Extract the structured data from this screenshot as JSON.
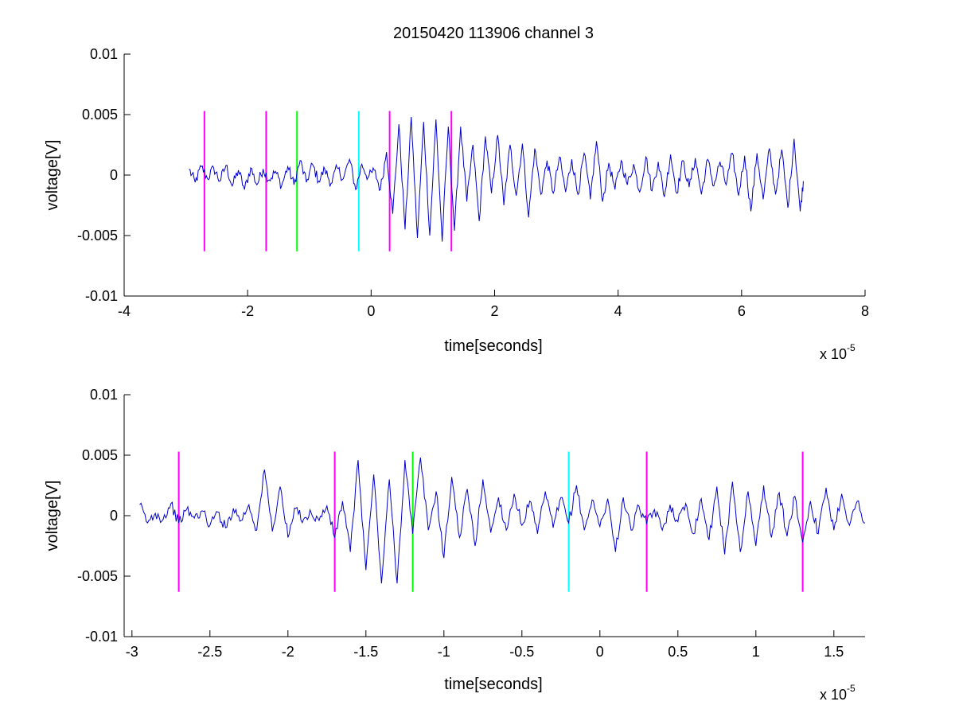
{
  "chart_data": [
    {
      "type": "line",
      "title": "20150420 113906 channel 3",
      "xlabel": "time[seconds]",
      "ylabel": "voltage[V]",
      "x_exponent_base": "x 10",
      "x_exponent_power": "-5",
      "xlim": [
        -4,
        8
      ],
      "ylim": [
        -0.01,
        0.01
      ],
      "x_ticks": [
        -4,
        -2,
        0,
        2,
        4,
        6,
        8
      ],
      "x_tick_labels": [
        "-4",
        "-2",
        "0",
        "2",
        "4",
        "6",
        "8"
      ],
      "y_ticks": [
        -0.01,
        -0.005,
        0,
        0.005,
        0.01
      ],
      "y_tick_labels": [
        "-0.01",
        "-0.005",
        "0",
        "0.005",
        "0.01"
      ],
      "signal": {
        "color": "#0000cc",
        "x_range": [
          -2.95,
          7.0
        ],
        "x": [
          -2.95,
          -2.85,
          -2.75,
          -2.65,
          -2.55,
          -2.45,
          -2.35,
          -2.25,
          -2.15,
          -2.05,
          -1.95,
          -1.85,
          -1.75,
          -1.65,
          -1.55,
          -1.45,
          -1.35,
          -1.25,
          -1.15,
          -1.05,
          -0.95,
          -0.85,
          -0.75,
          -0.65,
          -0.55,
          -0.45,
          -0.35,
          -0.25,
          -0.15,
          -0.05,
          0.05,
          0.15,
          0.25,
          0.35,
          0.45,
          0.55,
          0.65,
          0.75,
          0.85,
          0.95,
          1.05,
          1.15,
          1.25,
          1.35,
          1.45,
          1.55,
          1.65,
          1.75,
          1.85,
          1.95,
          2.05,
          2.15,
          2.25,
          2.35,
          2.45,
          2.55,
          2.65,
          2.75,
          2.85,
          2.95,
          3.05,
          3.15,
          3.25,
          3.35,
          3.45,
          3.55,
          3.65,
          3.75,
          3.85,
          3.95,
          4.05,
          4.15,
          4.25,
          4.35,
          4.45,
          4.55,
          4.65,
          4.75,
          4.85,
          4.95,
          5.05,
          5.15,
          5.25,
          5.35,
          5.45,
          5.55,
          5.65,
          5.75,
          5.85,
          5.95,
          6.05,
          6.15,
          6.25,
          6.35,
          6.45,
          6.55,
          6.65,
          6.75,
          6.85,
          6.95,
          7.0
        ],
        "y": [
          0.0005,
          -0.0006,
          0.0007,
          -0.0003,
          0.0006,
          -0.0005,
          0.0008,
          -0.0009,
          0.0004,
          -0.0012,
          0.0006,
          -0.0008,
          0.0005,
          -0.0004,
          0.0003,
          -0.0009,
          0.0007,
          -0.0008,
          0.0012,
          -0.0006,
          0.0009,
          -0.0005,
          0.0005,
          -0.0007,
          0.0006,
          -0.0003,
          0.0013,
          -0.0012,
          0.0009,
          -0.0002,
          0.0004,
          -0.0012,
          0.0019,
          -0.0032,
          0.0042,
          -0.0045,
          0.0048,
          -0.0052,
          0.0044,
          -0.005,
          0.0046,
          -0.0055,
          0.004,
          -0.0046,
          0.004,
          -0.0022,
          0.0025,
          -0.0038,
          0.0032,
          -0.0015,
          0.0033,
          -0.0025,
          0.0025,
          -0.0017,
          0.0026,
          -0.0035,
          0.0022,
          -0.0016,
          0.0012,
          -0.0015,
          0.0015,
          -0.0014,
          0.0013,
          -0.0016,
          0.0018,
          -0.002,
          0.0028,
          -0.0022,
          0.001,
          -0.0012,
          0.0012,
          -0.0008,
          0.0009,
          -0.0014,
          0.0015,
          -0.0013,
          0.0011,
          -0.0018,
          0.0017,
          -0.0015,
          0.0012,
          -0.001,
          0.0014,
          -0.0016,
          0.0013,
          -0.0009,
          0.0011,
          -0.0008,
          0.0018,
          -0.0017,
          0.0016,
          -0.003,
          0.0018,
          -0.002,
          0.0022,
          -0.0016,
          0.0021,
          -0.0027,
          0.003,
          -0.003,
          -0.0005
        ]
      },
      "markers": [
        {
          "x": -2.7,
          "color": "#ff00ff"
        },
        {
          "x": -1.7,
          "color": "#ff00ff"
        },
        {
          "x": -1.2,
          "color": "#00ff00"
        },
        {
          "x": -0.2,
          "color": "#00ffff"
        },
        {
          "x": 0.3,
          "color": "#ff00ff"
        },
        {
          "x": 1.3,
          "color": "#ff00ff"
        }
      ],
      "marker_ylim": [
        -0.0063,
        0.0053
      ]
    },
    {
      "type": "line",
      "title": "",
      "xlabel": "time[seconds]",
      "ylabel": "voltage[V]",
      "x_exponent_base": "x 10",
      "x_exponent_power": "-5",
      "xlim": [
        -3.05,
        1.7
      ],
      "ylim": [
        -0.01,
        0.01
      ],
      "x_ticks": [
        -3,
        -2.5,
        -2,
        -1.5,
        -1,
        -0.5,
        0,
        0.5,
        1,
        1.5
      ],
      "x_tick_labels": [
        "-3",
        "-2.5",
        "-2",
        "-1.5",
        "-1",
        "-0.5",
        "0",
        "0.5",
        "1",
        "1.5"
      ],
      "y_ticks": [
        -0.01,
        -0.005,
        0,
        0.005,
        0.01
      ],
      "y_tick_labels": [
        "-0.01",
        "-0.005",
        "0",
        "0.005",
        "0.01"
      ],
      "signal": {
        "color": "#0000cc",
        "x_range": [
          -2.95,
          1.7
        ],
        "x": [
          -2.95,
          -2.9,
          -2.85,
          -2.8,
          -2.75,
          -2.7,
          -2.65,
          -2.6,
          -2.55,
          -2.5,
          -2.45,
          -2.4,
          -2.35,
          -2.3,
          -2.25,
          -2.2,
          -2.15,
          -2.1,
          -2.05,
          -2.0,
          -1.95,
          -1.9,
          -1.85,
          -1.8,
          -1.75,
          -1.7,
          -1.65,
          -1.6,
          -1.55,
          -1.5,
          -1.45,
          -1.4,
          -1.35,
          -1.3,
          -1.25,
          -1.2,
          -1.15,
          -1.1,
          -1.05,
          -1.0,
          -0.95,
          -0.9,
          -0.85,
          -0.8,
          -0.75,
          -0.7,
          -0.65,
          -0.6,
          -0.55,
          -0.5,
          -0.45,
          -0.4,
          -0.35,
          -0.3,
          -0.25,
          -0.2,
          -0.15,
          -0.1,
          -0.05,
          0.0,
          0.05,
          0.1,
          0.15,
          0.2,
          0.25,
          0.3,
          0.35,
          0.4,
          0.45,
          0.5,
          0.55,
          0.6,
          0.65,
          0.7,
          0.75,
          0.8,
          0.85,
          0.9,
          0.95,
          1.0,
          1.05,
          1.1,
          1.15,
          1.2,
          1.25,
          1.3,
          1.35,
          1.4,
          1.45,
          1.5,
          1.55,
          1.6,
          1.65,
          1.7
        ],
        "y": [
          0.0009,
          -0.0006,
          0.0002,
          -0.0003,
          0.001,
          -0.0006,
          0.0005,
          -0.0002,
          0.0004,
          -0.0008,
          0.0003,
          -0.001,
          0.0006,
          -0.0004,
          0.0009,
          -0.0012,
          0.0038,
          -0.0013,
          0.0024,
          -0.0018,
          0.0006,
          -0.0003,
          0.0002,
          -0.0004,
          0.0008,
          -0.0018,
          0.0012,
          -0.003,
          0.0046,
          -0.0045,
          0.0034,
          -0.0056,
          0.003,
          -0.0056,
          0.0046,
          -0.0015,
          0.0048,
          -0.0012,
          0.002,
          -0.0035,
          0.0032,
          -0.0018,
          0.0022,
          -0.0025,
          0.003,
          -0.0014,
          0.0015,
          -0.0012,
          0.0018,
          -0.0008,
          0.0012,
          -0.0015,
          0.002,
          -0.001,
          0.0015,
          -0.0006,
          0.0025,
          -0.0012,
          0.0013,
          -0.0009,
          0.0014,
          -0.003,
          0.0015,
          -0.0012,
          0.0008,
          -0.0007,
          0.0005,
          -0.0012,
          0.0009,
          -0.0005,
          0.001,
          -0.0015,
          0.0014,
          -0.002,
          0.0024,
          -0.0032,
          0.0028,
          -0.003,
          0.002,
          -0.0025,
          0.0025,
          -0.0018,
          0.0019,
          -0.0017,
          0.0016,
          -0.0022,
          0.0012,
          -0.0015,
          0.0023,
          -0.0012,
          0.0018,
          -0.0008,
          0.0012,
          -0.0006
        ]
      },
      "markers": [
        {
          "x": -2.7,
          "color": "#ff00ff"
        },
        {
          "x": -1.7,
          "color": "#ff00ff"
        },
        {
          "x": -1.2,
          "color": "#00ff00"
        },
        {
          "x": -0.2,
          "color": "#00ffff"
        },
        {
          "x": 0.3,
          "color": "#ff00ff"
        },
        {
          "x": 1.3,
          "color": "#ff00ff"
        }
      ],
      "marker_ylim": [
        -0.0063,
        0.0053
      ]
    }
  ]
}
